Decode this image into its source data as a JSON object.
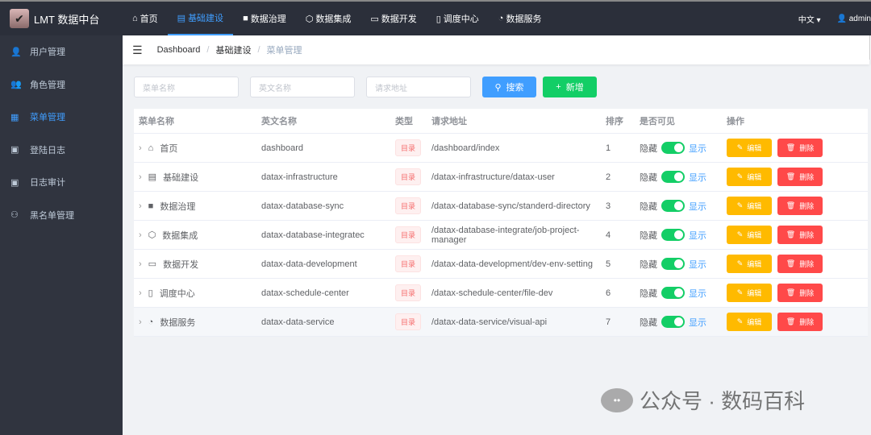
{
  "header": {
    "app_title": "LMT 数据中台",
    "nav": [
      {
        "label": "首页",
        "icon": "home-icon"
      },
      {
        "label": "基础建设",
        "icon": "document-icon",
        "active": true
      },
      {
        "label": "数据治理",
        "icon": "chip-icon"
      },
      {
        "label": "数据集成",
        "icon": "cube-icon"
      },
      {
        "label": "数据开发",
        "icon": "monitor-icon"
      },
      {
        "label": "调度中心",
        "icon": "clipboard-icon"
      },
      {
        "label": "数据服务",
        "icon": "shield-icon"
      }
    ],
    "language": "中文",
    "user": "admin"
  },
  "sidebar": {
    "items": [
      {
        "label": "用户管理"
      },
      {
        "label": "角色管理"
      },
      {
        "label": "菜单管理",
        "active": true
      },
      {
        "label": "登陆日志"
      },
      {
        "label": "日志审计"
      },
      {
        "label": "黑名单管理"
      }
    ]
  },
  "breadcrumb": [
    "Dashboard",
    "基础建设",
    "菜单管理"
  ],
  "filters": {
    "menu_name_placeholder": "菜单名称",
    "english_name_placeholder": "英文名称",
    "url_placeholder": "请求地址",
    "search": "搜索",
    "add": "新增"
  },
  "table": {
    "headers": [
      "菜单名称",
      "英文名称",
      "类型",
      "请求地址",
      "排序",
      "是否可见",
      "操作"
    ],
    "rows": [
      {
        "name": "首页",
        "en": "dashboard",
        "type": "目录",
        "url": "/dashboard/index",
        "sort": "1"
      },
      {
        "name": "基础建设",
        "en": "datax-infrastructure",
        "type": "目录",
        "url": "/datax-infrastructure/datax-user",
        "sort": "2"
      },
      {
        "name": "数据治理",
        "en": "datax-database-sync",
        "type": "目录",
        "url": "/datax-database-sync/standerd-directory",
        "sort": "3"
      },
      {
        "name": "数据集成",
        "en": "datax-database-integratec",
        "type": "目录",
        "url": "/datax-database-integrate/job-project-manager",
        "sort": "4"
      },
      {
        "name": "数据开发",
        "en": "datax-data-development",
        "type": "目录",
        "url": "/datax-data-development/dev-env-setting",
        "sort": "5"
      },
      {
        "name": "调度中心",
        "en": "datax-schedule-center",
        "type": "目录",
        "url": "/datax-schedule-center/file-dev",
        "sort": "6"
      },
      {
        "name": "数据服务",
        "en": "datax-data-service",
        "type": "目录",
        "url": "/datax-data-service/visual-api",
        "sort": "7"
      }
    ],
    "hide_label": "隐藏",
    "show_label": "显示",
    "edit": "编辑",
    "delete": "删除",
    "visible": true
  },
  "watermark": "公众号 · 数码百科",
  "colors": {
    "primary": "#409eff",
    "success": "#13ce66",
    "warning": "#ffba00",
    "danger": "#ff4949"
  }
}
